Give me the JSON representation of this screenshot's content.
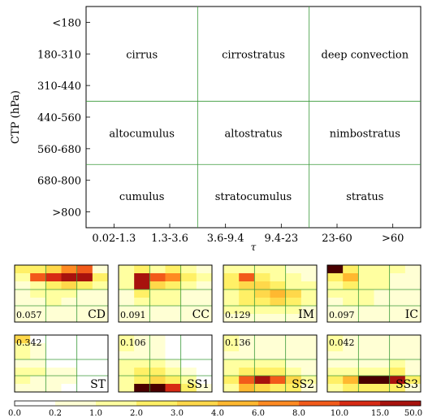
{
  "chart_data": [
    {
      "type": "table",
      "ylabel": "CTP (hPa)",
      "xlabel": "τ",
      "y_ticks": [
        "<180",
        "180-310",
        "310-440",
        "440-560",
        "560-680",
        "680-800",
        ">800"
      ],
      "x_ticks": [
        "0.02-1.3",
        "1.3-3.6",
        "3.6-9.4",
        "9.4-23",
        "23-60",
        ">60"
      ],
      "cloud_types": [
        [
          "cirrus",
          "cirrostratus",
          "deep convection"
        ],
        [
          "altocumulus",
          "altostratus",
          "nimbostratus"
        ],
        [
          "cumulus",
          "stratocumulus",
          "stratus"
        ]
      ]
    },
    {
      "type": "heatmap",
      "rows": 7,
      "cols": 6,
      "grid": true,
      "color_scale": {
        "ticks": [
          "0.0",
          "0.2",
          "1.0",
          "2.0",
          "3.0",
          "4.0",
          "6.0",
          "8.0",
          "10.0",
          "15.0",
          "50.0"
        ],
        "colors": [
          "#ffffff",
          "#ffffd4",
          "#ffffa0",
          "#fff066",
          "#ffd84a",
          "#ffb830",
          "#ff8a22",
          "#f25a1a",
          "#d72a14",
          "#a8120d",
          "#4a0000"
        ]
      },
      "panels": [
        {
          "name": "CD",
          "value": "0.057",
          "values": [
            [
              3,
              3,
              4,
              6,
              7,
              1
            ],
            [
              2,
              7,
              8,
              9,
              9,
              3
            ],
            [
              1,
              2,
              3,
              4,
              3,
              2
            ],
            [
              1,
              2,
              2,
              2,
              1,
              1
            ],
            [
              1,
              1,
              2,
              1,
              1,
              1
            ],
            [
              1,
              1,
              1,
              1,
              1,
              1
            ],
            [
              1,
              1,
              1,
              1,
              1,
              1
            ]
          ]
        },
        {
          "name": "CC",
          "value": "0.091",
          "values": [
            [
              2,
              3,
              2,
              3,
              2,
              1
            ],
            [
              2,
              9,
              7,
              6,
              3,
              2
            ],
            [
              2,
              9,
              4,
              3,
              2,
              1
            ],
            [
              1,
              3,
              2,
              2,
              1,
              1
            ],
            [
              1,
              2,
              2,
              2,
              1,
              1
            ],
            [
              1,
              1,
              1,
              1,
              1,
              1
            ],
            [
              1,
              1,
              1,
              1,
              1,
              1
            ]
          ]
        },
        {
          "name": "IM",
          "value": "0.129",
          "values": [
            [
              2,
              2,
              2,
              2,
              1,
              1
            ],
            [
              3,
              7,
              3,
              2,
              2,
              1
            ],
            [
              3,
              4,
              4,
              3,
              2,
              2
            ],
            [
              2,
              3,
              4,
              5,
              4,
              2
            ],
            [
              2,
              3,
              3,
              4,
              3,
              2
            ],
            [
              2,
              2,
              2,
              2,
              2,
              1
            ],
            [
              1,
              1,
              1,
              1,
              1,
              1
            ]
          ]
        },
        {
          "name": "IC",
          "value": "0.097",
          "values": [
            [
              10,
              3,
              2,
              2,
              2,
              1
            ],
            [
              3,
              5,
              2,
              2,
              1,
              1
            ],
            [
              2,
              3,
              2,
              2,
              1,
              1
            ],
            [
              2,
              2,
              2,
              1,
              1,
              1
            ],
            [
              1,
              2,
              2,
              1,
              1,
              1
            ],
            [
              1,
              1,
              1,
              1,
              1,
              1
            ],
            [
              1,
              1,
              1,
              1,
              1,
              1
            ]
          ]
        },
        {
          "name": "ST",
          "value": "0.342",
          "values": [
            [
              4,
              0,
              0,
              0,
              0,
              0
            ],
            [
              2,
              1,
              0,
              0,
              0,
              0
            ],
            [
              2,
              1,
              0,
              0,
              0,
              0
            ],
            [
              1,
              1,
              0,
              0,
              0,
              0
            ],
            [
              2,
              2,
              1,
              1,
              0,
              0
            ],
            [
              2,
              1,
              1,
              1,
              0,
              0
            ],
            [
              1,
              1,
              1,
              0,
              0,
              0
            ]
          ]
        },
        {
          "name": "SS1",
          "value": "0.106",
          "values": [
            [
              2,
              1,
              1,
              0,
              0,
              0
            ],
            [
              2,
              1,
              1,
              0,
              0,
              0
            ],
            [
              1,
              1,
              1,
              0,
              0,
              0
            ],
            [
              2,
              2,
              2,
              1,
              0,
              0
            ],
            [
              2,
              3,
              3,
              2,
              1,
              0
            ],
            [
              2,
              3,
              4,
              3,
              2,
              0
            ],
            [
              2,
              10,
              10,
              8,
              3,
              1
            ]
          ]
        },
        {
          "name": "SS2",
          "value": "0.136",
          "values": [
            [
              2,
              1,
              1,
              1,
              1,
              1
            ],
            [
              2,
              1,
              1,
              1,
              1,
              1
            ],
            [
              1,
              1,
              1,
              1,
              1,
              1
            ],
            [
              2,
              2,
              2,
              2,
              1,
              1
            ],
            [
              2,
              3,
              3,
              3,
              2,
              1
            ],
            [
              3,
              7,
              9,
              7,
              4,
              2
            ],
            [
              2,
              5,
              4,
              3,
              3,
              1
            ]
          ]
        },
        {
          "name": "SS3",
          "value": "0.042",
          "values": [
            [
              2,
              1,
              1,
              1,
              1,
              1
            ],
            [
              2,
              1,
              1,
              1,
              1,
              1
            ],
            [
              1,
              1,
              1,
              1,
              1,
              1
            ],
            [
              1,
              1,
              1,
              1,
              2,
              1
            ],
            [
              2,
              2,
              2,
              2,
              3,
              1
            ],
            [
              3,
              5,
              10,
              10,
              9,
              3
            ],
            [
              2,
              3,
              3,
              3,
              3,
              1
            ]
          ]
        }
      ]
    }
  ]
}
